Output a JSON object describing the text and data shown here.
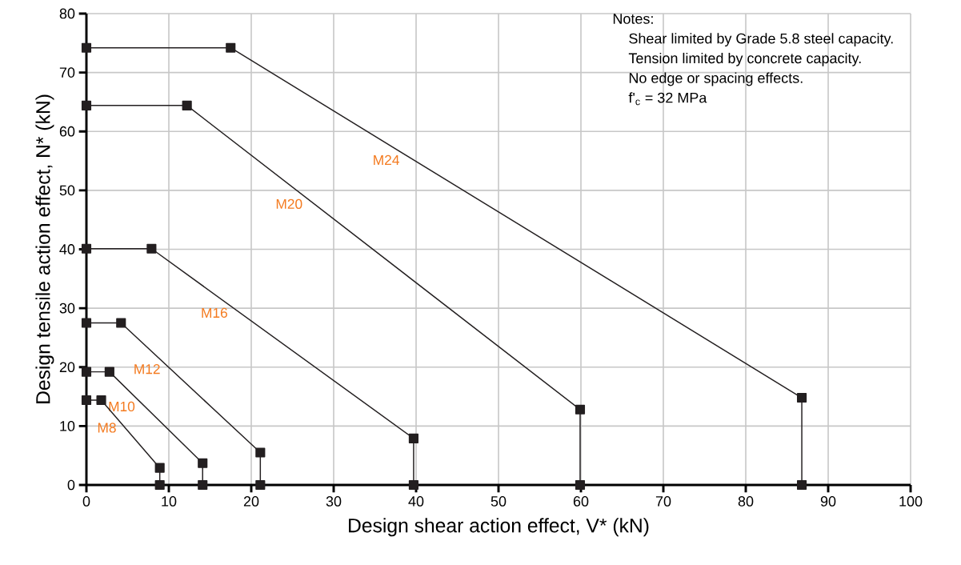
{
  "chart_data": {
    "type": "line",
    "xlabel": "Design shear action effect, V* (kN)",
    "ylabel": "Design tensile action effect, N* (kN)",
    "xlim": [
      0,
      100
    ],
    "ylim": [
      0,
      80
    ],
    "xticks": [
      0,
      10,
      20,
      30,
      40,
      50,
      60,
      70,
      80,
      90,
      100
    ],
    "yticks": [
      0,
      10,
      20,
      30,
      40,
      50,
      60,
      70,
      80
    ],
    "grid": true,
    "marker": "square",
    "line_style": "solid",
    "series": [
      {
        "name": "M24",
        "color": "#231f20",
        "x": [
          0,
          17.5,
          86.8,
          86.8
        ],
        "values": [
          74.2,
          74.2,
          14.8,
          0
        ]
      },
      {
        "name": "M20",
        "color": "#231f20",
        "x": [
          0,
          12.2,
          59.9,
          59.9
        ],
        "values": [
          64.4,
          64.4,
          12.8,
          0
        ]
      },
      {
        "name": "M16",
        "color": "#231f20",
        "x": [
          0,
          7.9,
          39.7,
          39.7
        ],
        "values": [
          40.1,
          40.1,
          7.9,
          0
        ]
      },
      {
        "name": "M12",
        "color": "#231f20",
        "x": [
          0,
          4.2,
          21.1,
          21.1
        ],
        "values": [
          27.5,
          27.5,
          5.5,
          0
        ]
      },
      {
        "name": "M10",
        "color": "#231f20",
        "x": [
          0,
          2.8,
          14.1,
          14.1
        ],
        "values": [
          19.2,
          19.2,
          3.7,
          0
        ]
      },
      {
        "name": "M8",
        "color": "#231f20",
        "x": [
          0,
          1.8,
          8.9,
          8.9
        ],
        "values": [
          14.4,
          14.4,
          2.9,
          0
        ]
      }
    ],
    "annotations": [
      "Notes:",
      "Shear limited by Grade 5.8 steel capacity.",
      "Tension limited by concrete capacity.",
      "No edge or spacing effects.",
      "f'$_{c}$ = 32 MPa"
    ]
  }
}
